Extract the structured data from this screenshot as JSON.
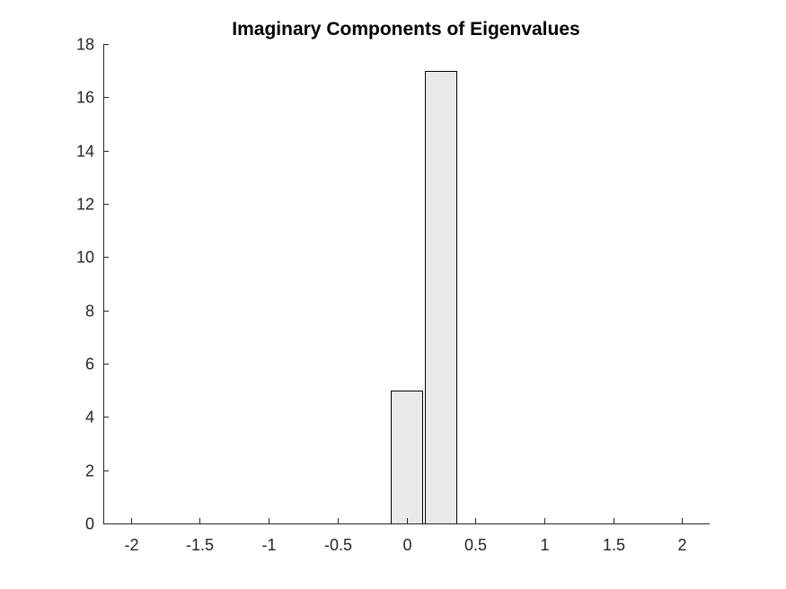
{
  "chart_data": {
    "type": "bar",
    "title": "Imaginary Components of Eigenvalues",
    "xlabel": "",
    "ylabel": "",
    "xlim": [
      -2.2,
      2.2
    ],
    "ylim": [
      0,
      18
    ],
    "xticks": [
      -2,
      -1.5,
      -1,
      -0.5,
      0,
      0.5,
      1,
      1.5,
      2
    ],
    "xtick_labels": [
      "-2",
      "-1.5",
      "-1",
      "-0.5",
      "0",
      "0.5",
      "1",
      "1.5",
      "2"
    ],
    "yticks": [
      0,
      2,
      4,
      6,
      8,
      10,
      12,
      14,
      16,
      18
    ],
    "ytick_labels": [
      "0",
      "2",
      "4",
      "6",
      "8",
      "10",
      "12",
      "14",
      "16",
      "18"
    ],
    "bin_width": 0.25,
    "bin_centers": [
      -2.0,
      -1.75,
      -1.5,
      -1.25,
      -1.0,
      -0.75,
      -0.5,
      -0.25,
      0.0,
      0.25,
      0.5,
      0.75,
      1.0,
      1.25,
      1.5,
      1.75,
      2.0
    ],
    "values": [
      0,
      0,
      0,
      0,
      0,
      0,
      0,
      0,
      5,
      17,
      0,
      0,
      0,
      0,
      0,
      0,
      0
    ],
    "grid": false,
    "box": "off",
    "bar_color": "#e9e9e9",
    "edge_color": "#000000"
  }
}
